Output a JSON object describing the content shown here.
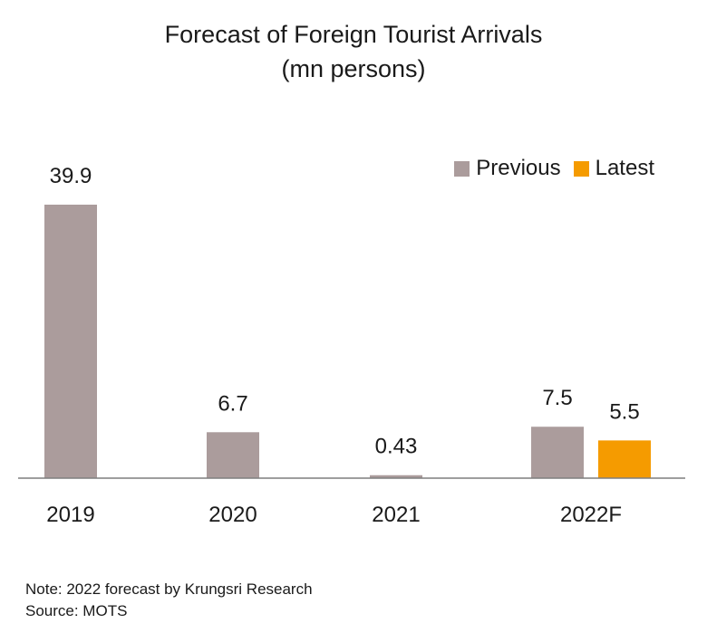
{
  "chart_data": {
    "type": "bar",
    "title_line1": "Forecast of Foreign Tourist Arrivals",
    "title_line2": "(mn persons)",
    "categories": [
      "2019",
      "2020",
      "2021",
      "2022F"
    ],
    "series": [
      {
        "name": "Previous",
        "color": "#ab9c9c",
        "values": [
          39.9,
          6.7,
          0.43,
          7.5
        ]
      },
      {
        "name": "Latest",
        "color": "#f59b00",
        "values": [
          null,
          null,
          null,
          5.5
        ]
      }
    ],
    "data_labels": [
      [
        "39.9",
        "6.7",
        "0.43",
        "7.5"
      ],
      [
        null,
        null,
        null,
        "5.5"
      ]
    ],
    "ylim": [
      0,
      40
    ],
    "grid": false,
    "legend_position": "top-right"
  },
  "footnotes": {
    "note": "Note: 2022 forecast by Krungsri Research",
    "source": "Source: MOTS"
  }
}
